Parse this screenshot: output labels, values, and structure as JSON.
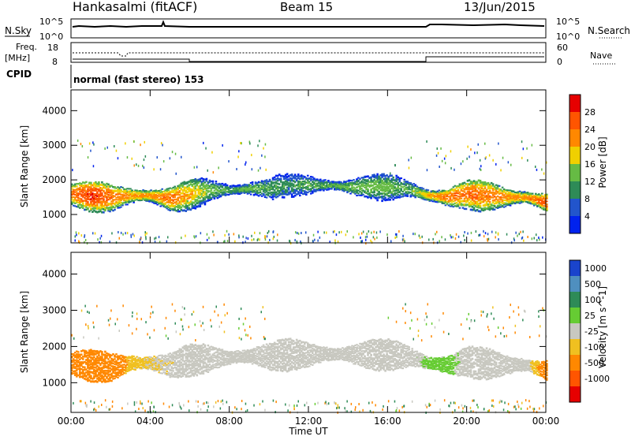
{
  "header": {
    "title": "Hankasalmi (fitACF)",
    "beam": "Beam 15",
    "date": "13/Jun/2015"
  },
  "top_panels": {
    "nsky_label": "N.Sky",
    "nsky_ticks": [
      "10^5",
      "10^0"
    ],
    "nsearch_label": "N.Search",
    "nsearch_ticks": [
      "10^5",
      "10^0"
    ],
    "freq_label": "Freq.",
    "freq_unit": "[MHz]",
    "freq_ticks": [
      "18",
      "8"
    ],
    "nave_label": "Nave",
    "nave_ticks": [
      "60",
      "0"
    ],
    "cpid_label": "CPID",
    "cpid_text": "normal (fast stereo) 153"
  },
  "chart_data": [
    {
      "type": "heatmap",
      "title": "",
      "xlabel": "",
      "ylabel": "Slant Range [km]",
      "ylim": [
        180,
        4600
      ],
      "yticks": [
        "1000",
        "2000",
        "3000",
        "4000"
      ],
      "colorbar_label": "Power [dB]",
      "colorbar_ticks": [
        "4",
        "8",
        "12",
        "16",
        "20",
        "24",
        "28"
      ],
      "colorbar_colors": [
        "#0022ee",
        "#2255cc",
        "#2e8b57",
        "#66bb44",
        "#f0d000",
        "#ff8800",
        "#ff5500",
        "#e60000"
      ],
      "series": [
        {
          "t": [
            0,
            1,
            2,
            3,
            4,
            5,
            6,
            7,
            8,
            9,
            10,
            11,
            12,
            13,
            14,
            15,
            16,
            17,
            18,
            19,
            20,
            21,
            22,
            23,
            24
          ],
          "center_km": [
            1600,
            1550,
            1500,
            1550,
            1550,
            1450,
            1600,
            1700,
            1700,
            1750,
            1750,
            1850,
            1850,
            1850,
            1800,
            1800,
            1800,
            1750,
            1550,
            1500,
            1600,
            1550,
            1500,
            1500,
            1350
          ],
          "power_db": [
            24,
            28,
            24,
            22,
            22,
            24,
            20,
            14,
            12,
            14,
            12,
            10,
            12,
            12,
            14,
            14,
            14,
            12,
            20,
            24,
            24,
            24,
            22,
            22,
            26
          ]
        }
      ]
    },
    {
      "type": "heatmap",
      "title": "",
      "xlabel": "Time UT",
      "ylabel": "Slant Range [km]",
      "ylim": [
        180,
        4600
      ],
      "yticks": [
        "1000",
        "2000",
        "3000",
        "4000"
      ],
      "xticks": [
        "00:00",
        "04:00",
        "08:00",
        "12:00",
        "16:00",
        "20:00",
        "00:00"
      ],
      "colorbar_label": "Velocity [m s^-1]",
      "colorbar_ticks": [
        "1000",
        "500",
        "100",
        "25",
        "-25",
        "-100",
        "-500",
        "-1000"
      ],
      "colorbar_colors": [
        "#1a44cc",
        "#4f8fbf",
        "#2e8b57",
        "#66cc33",
        "#c8c8c0",
        "#f0c020",
        "#ff8800",
        "#ff5500",
        "#e60000"
      ],
      "series": [
        {
          "t": [
            0,
            1,
            2,
            3,
            4,
            5,
            6,
            7,
            8,
            9,
            10,
            11,
            12,
            13,
            14,
            15,
            16,
            17,
            18,
            19,
            20,
            21,
            22,
            23,
            24
          ],
          "center_km": [
            1550,
            1500,
            1450,
            1550,
            1550,
            1500,
            1650,
            1700,
            1700,
            1750,
            1750,
            1800,
            1800,
            1800,
            1800,
            1800,
            1800,
            1750,
            1550,
            1500,
            1600,
            1550,
            1500,
            1500,
            1350
          ],
          "velocity_ms": [
            -150,
            -200,
            -150,
            -50,
            -30,
            -20,
            0,
            0,
            0,
            0,
            0,
            0,
            0,
            0,
            0,
            0,
            0,
            0,
            40,
            50,
            0,
            0,
            0,
            0,
            -120
          ]
        }
      ]
    }
  ]
}
